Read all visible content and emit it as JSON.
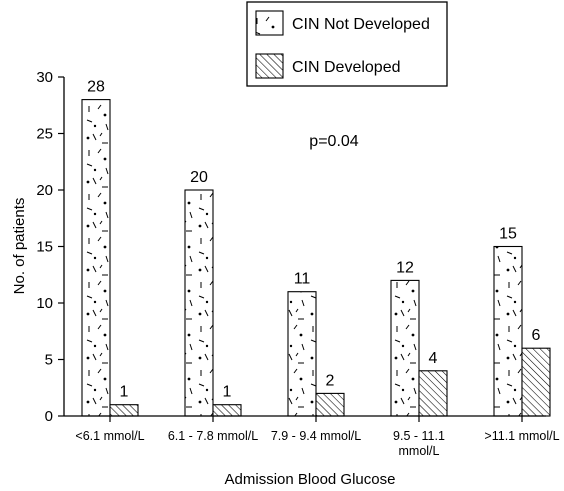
{
  "chart_data": {
    "type": "bar",
    "title": "",
    "xlabel": "Admission Blood Glucose",
    "ylabel": "No. of patients",
    "ylim": [
      0,
      30
    ],
    "yticks": [
      0,
      5,
      10,
      15,
      20,
      25,
      30
    ],
    "grid": false,
    "legend_position": "top-right",
    "annotation": "p=0.04",
    "categories": [
      [
        "<6.1 mmol/L"
      ],
      [
        "6.1 - 7.8 mmol/L"
      ],
      [
        "7.9 - 9.4 mmol/L"
      ],
      [
        "9.5 - 11.1",
        "mmol/L"
      ],
      [
        ">11.1 mmol/L"
      ]
    ],
    "series": [
      {
        "name": "CIN Not Developed",
        "pattern": "dotted-dashed",
        "values": [
          28,
          20,
          11,
          12,
          15
        ]
      },
      {
        "name": "CIN Developed",
        "pattern": "diagonal-hatch",
        "values": [
          1,
          1,
          2,
          4,
          6
        ]
      }
    ],
    "colors": {
      "stroke": "#000000",
      "background": "#ffffff"
    }
  }
}
